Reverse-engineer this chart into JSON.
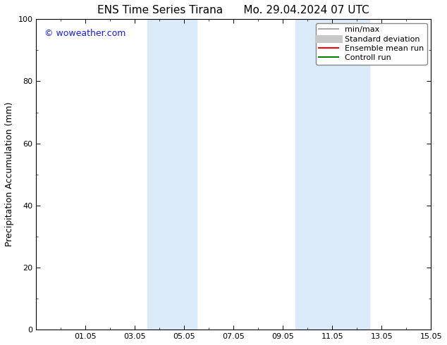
{
  "title": "ENS Time Series Tirana      Mo. 29.04.2024 07 UTC",
  "ylabel": "Precipitation Accumulation (mm)",
  "ylim": [
    0,
    100
  ],
  "yticks": [
    0,
    20,
    40,
    60,
    80,
    100
  ],
  "xtick_labels": [
    "01.05",
    "03.05",
    "05.05",
    "07.05",
    "09.05",
    "11.05",
    "13.05",
    "15.05"
  ],
  "xtick_positions": [
    2,
    4,
    6,
    8,
    10,
    12,
    14,
    16
  ],
  "xlim": [
    0,
    16
  ],
  "background_color": "#ffffff",
  "plot_bg_color": "#ffffff",
  "shaded_bands": [
    {
      "xmin": 4.5,
      "xmax": 6.5,
      "color": "#daeaf8"
    },
    {
      "xmin": 10.5,
      "xmax": 13.5,
      "color": "#daeaf8"
    }
  ],
  "watermark_text": "© woweather.com",
  "watermark_color": "#1a1aff",
  "legend_items": [
    {
      "label": "min/max",
      "color": "#aaaaaa",
      "lw": 1.5
    },
    {
      "label": "Standard deviation",
      "color": "#c8c8c8",
      "lw": 8
    },
    {
      "label": "Ensemble mean run",
      "color": "#ff0000",
      "lw": 1.5
    },
    {
      "label": "Controll run",
      "color": "#008000",
      "lw": 1.5
    }
  ],
  "title_fontsize": 11,
  "tick_fontsize": 8,
  "ylabel_fontsize": 9,
  "watermark_fontsize": 9,
  "legend_fontsize": 8
}
